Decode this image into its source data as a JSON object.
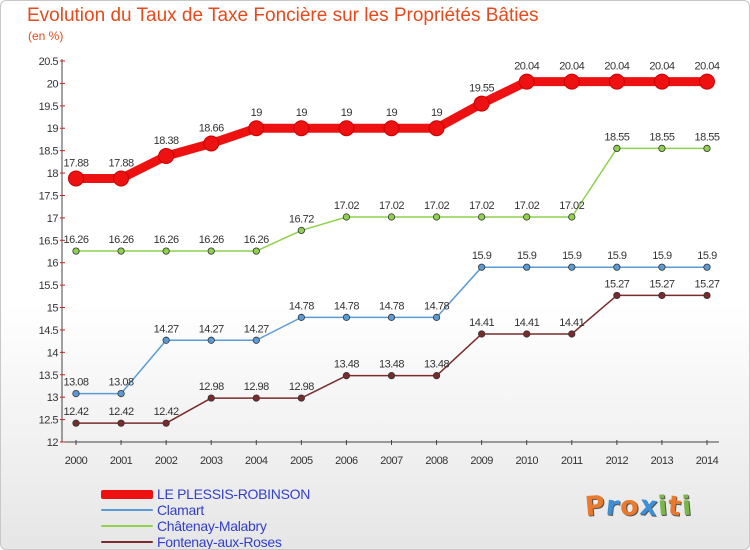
{
  "title": "Evolution du Taux de Taxe Foncière sur les Propriétés Bâties",
  "unit_label": "(en %)",
  "logo": {
    "text": "Proxiti",
    "letters": [
      "P",
      "r",
      "o",
      "x",
      "i",
      "t",
      "i"
    ],
    "colors": [
      "#e8792d",
      "#3d8fd8",
      "#e8792d",
      "#3d8fd8",
      "#7ab648",
      "#e8792d",
      "#7ab648"
    ]
  },
  "chart_data": {
    "type": "line",
    "title": "Evolution du Taux de Taxe Foncière sur les Propriétés Bâties",
    "ylabel": "(en %)",
    "xlabel": "",
    "x": [
      "2000",
      "2001",
      "2002",
      "2003",
      "2004",
      "2005",
      "2006",
      "2007",
      "2008",
      "2009",
      "2010",
      "2011",
      "2012",
      "2013",
      "2014"
    ],
    "ylim": [
      12,
      20.5
    ],
    "yticks": [
      12,
      12.5,
      13,
      13.5,
      14,
      14.5,
      15,
      15.5,
      16,
      16.5,
      17,
      17.5,
      18,
      18.5,
      19,
      19.5,
      20,
      20.5
    ],
    "grid": false,
    "legend_position": "bottom-left",
    "series": [
      {
        "name": "LE PLESSIS-ROBINSON",
        "color": "#ee1111",
        "emphasis": true,
        "values": [
          17.88,
          17.88,
          18.38,
          18.66,
          19,
          19,
          19,
          19,
          19,
          19.55,
          20.04,
          20.04,
          20.04,
          20.04,
          20.04
        ],
        "labels": [
          "17.88",
          "17.88",
          "18.38",
          "18.66",
          "19",
          "19",
          "19",
          "19",
          "19",
          "19.55",
          "20.04",
          "20.04",
          "20.04",
          "20.04",
          "20.04"
        ]
      },
      {
        "name": "Clamart",
        "color": "#5b9bd5",
        "values": [
          13.08,
          13.08,
          14.27,
          14.27,
          14.27,
          14.78,
          14.78,
          14.78,
          14.78,
          15.9,
          15.9,
          15.9,
          15.9,
          15.9,
          15.9
        ],
        "labels": [
          "13.08",
          "13.08",
          "14.27",
          "14.27",
          "14.27",
          "14.78",
          "14.78",
          "14.78",
          "14.78",
          "15.9",
          "15.9",
          "15.9",
          "15.9",
          "15.9",
          "15.9"
        ]
      },
      {
        "name": "Châtenay-Malabry",
        "color": "#8fd14f",
        "values": [
          16.26,
          16.26,
          16.26,
          16.26,
          16.26,
          16.72,
          17.02,
          17.02,
          17.02,
          17.02,
          17.02,
          17.02,
          18.55,
          18.55,
          18.55
        ],
        "labels": [
          "16.26",
          "16.26",
          "16.26",
          "16.26",
          "16.26",
          "16.72",
          "17.02",
          "17.02",
          "17.02",
          "17.02",
          "17.02",
          "17.02",
          "18.55",
          "18.55",
          "18.55"
        ]
      },
      {
        "name": "Fontenay-aux-Roses",
        "color": "#7a2b2b",
        "values": [
          12.42,
          12.42,
          12.42,
          12.98,
          12.98,
          12.98,
          13.48,
          13.48,
          13.48,
          14.41,
          14.41,
          14.41,
          15.27,
          15.27,
          15.27
        ],
        "labels": [
          "12.42",
          "12.42",
          "12.42",
          "12.98",
          "12.98",
          "12.98",
          "13.48",
          "13.48",
          "13.48",
          "14.41",
          "14.41",
          "14.41",
          "15.27",
          "15.27",
          "15.27"
        ]
      }
    ]
  }
}
